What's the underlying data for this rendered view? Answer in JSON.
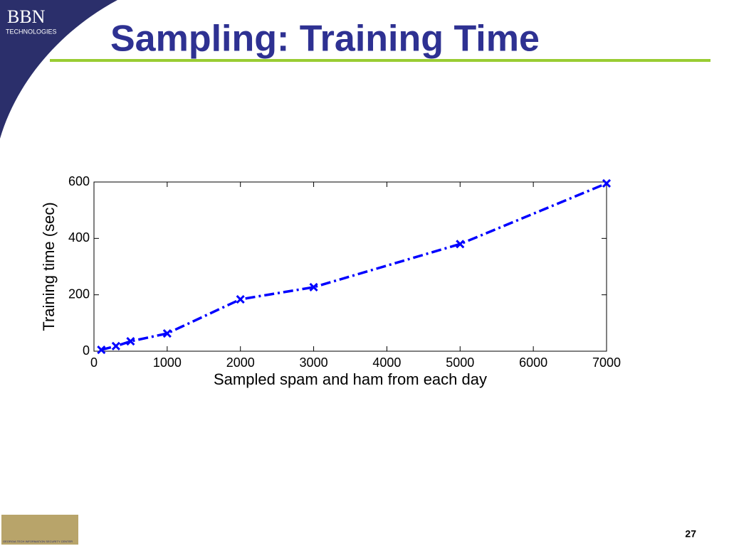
{
  "header": {
    "logo": "BBN",
    "logo_sub": "TECHNOLOGIES",
    "title": "Sampling: Training Time"
  },
  "footer": {
    "logo_text": "GEORGIA TECH INFORMATION SECURITY CENTER",
    "page_number": "27"
  },
  "chart_data": {
    "type": "line",
    "x_label": "Sampled spam and ham from each day",
    "y_label": "Training time (sec)",
    "x": [
      100,
      300,
      500,
      1000,
      2000,
      3000,
      5000,
      7000
    ],
    "values": [
      5,
      18,
      35,
      63,
      184,
      227,
      380,
      595
    ],
    "color": "#0000ff",
    "marker": "x",
    "line_style": "dashdot",
    "xlim": [
      0,
      7000
    ],
    "xticks": [
      0,
      1000,
      2000,
      3000,
      4000,
      5000,
      6000,
      7000
    ],
    "ylim": [
      0,
      600
    ],
    "yticks": [
      0,
      200,
      400,
      600
    ],
    "grid": false
  }
}
